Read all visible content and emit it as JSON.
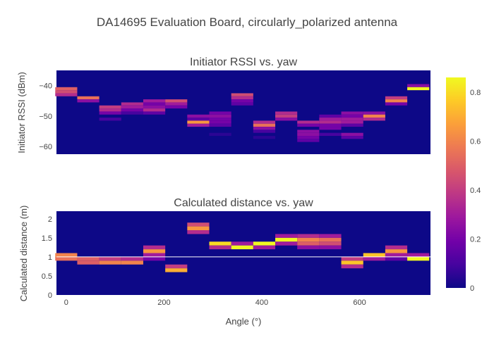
{
  "chart_data": {
    "type": "heatmap",
    "title": "DA14695 Evaluation Board, circularly_polarized antenna",
    "colorscale": [
      "#0d0887",
      "#46039f",
      "#7201a8",
      "#9c179e",
      "#bd3786",
      "#d8576b",
      "#ed7953",
      "#fb9f3a",
      "#fdca26",
      "#f0f921"
    ],
    "colorbar": {
      "range": [
        0,
        0.86
      ],
      "ticks": [
        0,
        0.2,
        0.4,
        0.6,
        0.8
      ]
    },
    "xlabel": "Angle (°)",
    "x_ticks": [
      0,
      200,
      400,
      600
    ],
    "x_range": [
      -20,
      745
    ],
    "yaw_bin_width": 45,
    "yaw_bins": [
      0,
      45,
      90,
      135,
      180,
      225,
      270,
      315,
      360,
      405,
      450,
      495,
      540,
      585,
      630,
      675,
      720
    ],
    "subplots": [
      {
        "subtitle": "Initiator RSSI vs. yaw",
        "ylabel": "Initiator RSSI (dBm)",
        "y_ticks": [
          -40,
          -50,
          -60
        ],
        "y_range": [
          -62.5,
          -35
        ],
        "bin_height": 1,
        "cells": [
          [
            0,
            -41,
            0.5
          ],
          [
            0,
            -42,
            0.45
          ],
          [
            0,
            -43,
            0.35
          ],
          [
            45,
            -44,
            0.55
          ],
          [
            45,
            -45,
            0.25
          ],
          [
            90,
            -47,
            0.4
          ],
          [
            90,
            -48,
            0.35
          ],
          [
            90,
            -49,
            0.2
          ],
          [
            90,
            -51,
            0.1
          ],
          [
            135,
            -46,
            0.35
          ],
          [
            135,
            -47,
            0.3
          ],
          [
            135,
            -48,
            0.2
          ],
          [
            135,
            -49,
            0.1
          ],
          [
            180,
            -45,
            0.3
          ],
          [
            180,
            -46,
            0.2
          ],
          [
            180,
            -47,
            0.25
          ],
          [
            180,
            -48,
            0.35
          ],
          [
            180,
            -49,
            0.15
          ],
          [
            225,
            -45,
            0.45
          ],
          [
            225,
            -46,
            0.3
          ],
          [
            225,
            -47,
            0.2
          ],
          [
            270,
            -50,
            0.25
          ],
          [
            270,
            -51,
            0.15
          ],
          [
            270,
            -52,
            0.65
          ],
          [
            270,
            -53,
            0.3
          ],
          [
            315,
            -49,
            0.2
          ],
          [
            315,
            -50,
            0.25
          ],
          [
            315,
            -51,
            0.2
          ],
          [
            315,
            -52,
            0.2
          ],
          [
            315,
            -53,
            0.15
          ],
          [
            315,
            -56,
            0.05
          ],
          [
            360,
            -43,
            0.45
          ],
          [
            360,
            -44,
            0.35
          ],
          [
            360,
            -45,
            0.2
          ],
          [
            360,
            -46,
            0.15
          ],
          [
            405,
            -52,
            0.35
          ],
          [
            405,
            -53,
            0.55
          ],
          [
            405,
            -54,
            0.25
          ],
          [
            405,
            -55,
            0.1
          ],
          [
            405,
            -57,
            0.05
          ],
          [
            450,
            -49,
            0.35
          ],
          [
            450,
            -50,
            0.4
          ],
          [
            450,
            -51,
            0.25
          ],
          [
            495,
            -52,
            0.35
          ],
          [
            495,
            -53,
            0.2
          ],
          [
            495,
            -55,
            0.25
          ],
          [
            495,
            -56,
            0.25
          ],
          [
            495,
            -57,
            0.2
          ],
          [
            495,
            -58,
            0.15
          ],
          [
            540,
            -50,
            0.15
          ],
          [
            540,
            -51,
            0.3
          ],
          [
            540,
            -52,
            0.35
          ],
          [
            540,
            -53,
            0.2
          ],
          [
            540,
            -54,
            0.2
          ],
          [
            540,
            -56,
            0.1
          ],
          [
            585,
            -49,
            0.25
          ],
          [
            585,
            -50,
            0.2
          ],
          [
            585,
            -51,
            0.3
          ],
          [
            585,
            -52,
            0.3
          ],
          [
            585,
            -53,
            0.15
          ],
          [
            585,
            -56,
            0.25
          ],
          [
            585,
            -57,
            0.15
          ],
          [
            630,
            -49,
            0.25
          ],
          [
            630,
            -50,
            0.6
          ],
          [
            630,
            -51,
            0.35
          ],
          [
            675,
            -44,
            0.4
          ],
          [
            675,
            -45,
            0.6
          ],
          [
            675,
            -46,
            0.2
          ],
          [
            720,
            -40,
            0.25
          ],
          [
            720,
            -41,
            0.86
          ]
        ]
      },
      {
        "subtitle": "Calculated distance vs. yaw",
        "ylabel": "Calculated distance (m)",
        "y_ticks": [
          0,
          0.5,
          1,
          1.5,
          2
        ],
        "y_range": [
          0,
          2.2
        ],
        "bin_height": 0.1,
        "reference_line": 1,
        "cells": [
          [
            0,
            1.05,
            0.6
          ],
          [
            0,
            0.95,
            0.55
          ],
          [
            45,
            0.95,
            0.5
          ],
          [
            45,
            0.85,
            0.5
          ],
          [
            90,
            0.95,
            0.4
          ],
          [
            90,
            0.85,
            0.6
          ],
          [
            135,
            0.95,
            0.35
          ],
          [
            135,
            0.85,
            0.6
          ],
          [
            180,
            1.25,
            0.35
          ],
          [
            180,
            1.15,
            0.65
          ],
          [
            180,
            1.05,
            0.3
          ],
          [
            180,
            0.95,
            0.2
          ],
          [
            225,
            0.75,
            0.4
          ],
          [
            225,
            0.65,
            0.7
          ],
          [
            270,
            1.85,
            0.45
          ],
          [
            270,
            1.75,
            0.65
          ],
          [
            270,
            1.65,
            0.35
          ],
          [
            315,
            1.35,
            0.8
          ],
          [
            315,
            1.25,
            0.35
          ],
          [
            360,
            1.35,
            0.3
          ],
          [
            360,
            1.25,
            0.86
          ],
          [
            405,
            1.35,
            0.86
          ],
          [
            405,
            1.25,
            0.3
          ],
          [
            450,
            1.55,
            0.3
          ],
          [
            450,
            1.45,
            0.86
          ],
          [
            450,
            1.35,
            0.3
          ],
          [
            495,
            1.55,
            0.35
          ],
          [
            495,
            1.45,
            0.6
          ],
          [
            495,
            1.35,
            0.5
          ],
          [
            495,
            1.25,
            0.25
          ],
          [
            540,
            1.55,
            0.3
          ],
          [
            540,
            1.45,
            0.55
          ],
          [
            540,
            1.35,
            0.45
          ],
          [
            540,
            1.25,
            0.25
          ],
          [
            585,
            0.95,
            0.4
          ],
          [
            585,
            0.85,
            0.75
          ],
          [
            585,
            0.75,
            0.35
          ],
          [
            630,
            1.05,
            0.75
          ],
          [
            630,
            0.95,
            0.3
          ],
          [
            675,
            1.25,
            0.35
          ],
          [
            675,
            1.15,
            0.65
          ],
          [
            675,
            1.05,
            0.3
          ],
          [
            675,
            0.95,
            0.15
          ],
          [
            720,
            1.05,
            0.3
          ],
          [
            720,
            0.95,
            0.86
          ]
        ]
      }
    ]
  }
}
